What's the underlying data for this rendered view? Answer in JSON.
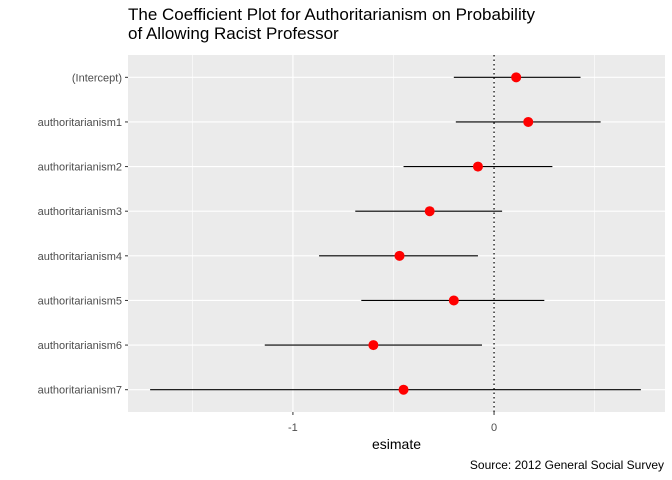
{
  "chart_data": {
    "type": "coefficient",
    "title": "The Coefficient Plot for Authoritarianism on Probability\nof Allowing Racist Professor",
    "xlabel": "esimate",
    "ylabel": "",
    "caption": "Source: 2012 General Social Survey",
    "xlim": [
      -1.82,
      0.85
    ],
    "xticks": [
      -1,
      0
    ],
    "xtick_labels": [
      "-1",
      "0"
    ],
    "reference_line": 0,
    "grid": true,
    "categories": [
      "(Intercept)",
      "authoritarianism1",
      "authoritarianism2",
      "authoritarianism3",
      "authoritarianism4",
      "authoritarianism5",
      "authoritarianism6",
      "authoritarianism7"
    ],
    "estimates": [
      0.11,
      0.17,
      -0.08,
      -0.32,
      -0.47,
      -0.2,
      -0.6,
      -0.45
    ],
    "lower": [
      -0.2,
      -0.19,
      -0.45,
      -0.69,
      -0.87,
      -0.66,
      -1.14,
      -1.71
    ],
    "upper": [
      0.43,
      0.53,
      0.29,
      0.04,
      -0.08,
      0.25,
      -0.06,
      0.73
    ],
    "point_color": "#ff0000",
    "line_color": "#000000",
    "panel_background": "#ebebeb"
  }
}
